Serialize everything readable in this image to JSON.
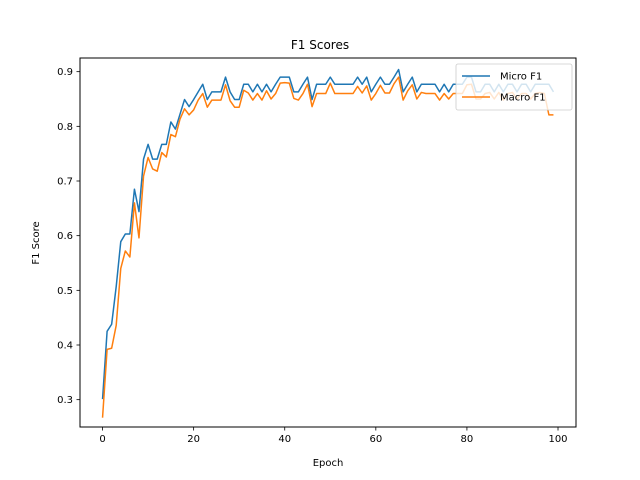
{
  "chart_data": {
    "type": "line",
    "title": "F1 Scores",
    "xlabel": "Epoch",
    "ylabel": "F1 Score",
    "xlim": [
      -4.95,
      103.95
    ],
    "ylim": [
      0.25,
      0.925
    ],
    "xticks": [
      0,
      20,
      40,
      60,
      80,
      100
    ],
    "yticks": [
      0.3,
      0.4,
      0.5,
      0.6,
      0.7,
      0.8,
      0.9
    ],
    "legend": "top-right",
    "grid": false,
    "series": [
      {
        "name": "Micro F1",
        "color": "#1f77b4",
        "values": [
          0.301,
          0.425,
          0.438,
          0.507,
          0.589,
          0.603,
          0.603,
          0.685,
          0.644,
          0.74,
          0.767,
          0.74,
          0.74,
          0.767,
          0.767,
          0.808,
          0.795,
          0.822,
          0.849,
          0.836,
          0.849,
          0.863,
          0.877,
          0.849,
          0.863,
          0.863,
          0.863,
          0.89,
          0.863,
          0.849,
          0.849,
          0.877,
          0.877,
          0.863,
          0.877,
          0.863,
          0.877,
          0.863,
          0.877,
          0.89,
          0.89,
          0.89,
          0.863,
          0.863,
          0.877,
          0.89,
          0.849,
          0.877,
          0.877,
          0.877,
          0.89,
          0.877,
          0.877,
          0.877,
          0.877,
          0.877,
          0.89,
          0.877,
          0.89,
          0.863,
          0.877,
          0.89,
          0.877,
          0.877,
          0.89,
          0.904,
          0.863,
          0.877,
          0.89,
          0.863,
          0.877,
          0.877,
          0.877,
          0.877,
          0.863,
          0.877,
          0.863,
          0.877,
          0.877,
          0.877,
          0.89,
          0.89,
          0.863,
          0.863,
          0.877,
          0.877,
          0.863,
          0.877,
          0.863,
          0.877,
          0.877,
          0.863,
          0.877,
          0.877,
          0.863,
          0.877,
          0.877,
          0.877,
          0.877,
          0.863
        ]
      },
      {
        "name": "Macro F1",
        "color": "#ff7f0e",
        "values": [
          0.267,
          0.392,
          0.394,
          0.436,
          0.54,
          0.572,
          0.561,
          0.66,
          0.596,
          0.709,
          0.743,
          0.722,
          0.718,
          0.752,
          0.744,
          0.785,
          0.781,
          0.813,
          0.832,
          0.821,
          0.83,
          0.848,
          0.86,
          0.835,
          0.848,
          0.848,
          0.848,
          0.876,
          0.847,
          0.835,
          0.835,
          0.866,
          0.861,
          0.848,
          0.86,
          0.848,
          0.865,
          0.85,
          0.86,
          0.879,
          0.88,
          0.879,
          0.851,
          0.848,
          0.86,
          0.877,
          0.836,
          0.86,
          0.86,
          0.86,
          0.879,
          0.86,
          0.86,
          0.86,
          0.86,
          0.86,
          0.873,
          0.861,
          0.874,
          0.848,
          0.86,
          0.875,
          0.861,
          0.861,
          0.878,
          0.89,
          0.848,
          0.865,
          0.876,
          0.85,
          0.862,
          0.86,
          0.86,
          0.86,
          0.848,
          0.86,
          0.85,
          0.86,
          0.86,
          0.86,
          0.876,
          0.877,
          0.85,
          0.85,
          0.86,
          0.862,
          0.85,
          0.862,
          0.848,
          0.86,
          0.862,
          0.85,
          0.86,
          0.86,
          0.85,
          0.86,
          0.862,
          0.86,
          0.821,
          0.821
        ]
      }
    ]
  }
}
